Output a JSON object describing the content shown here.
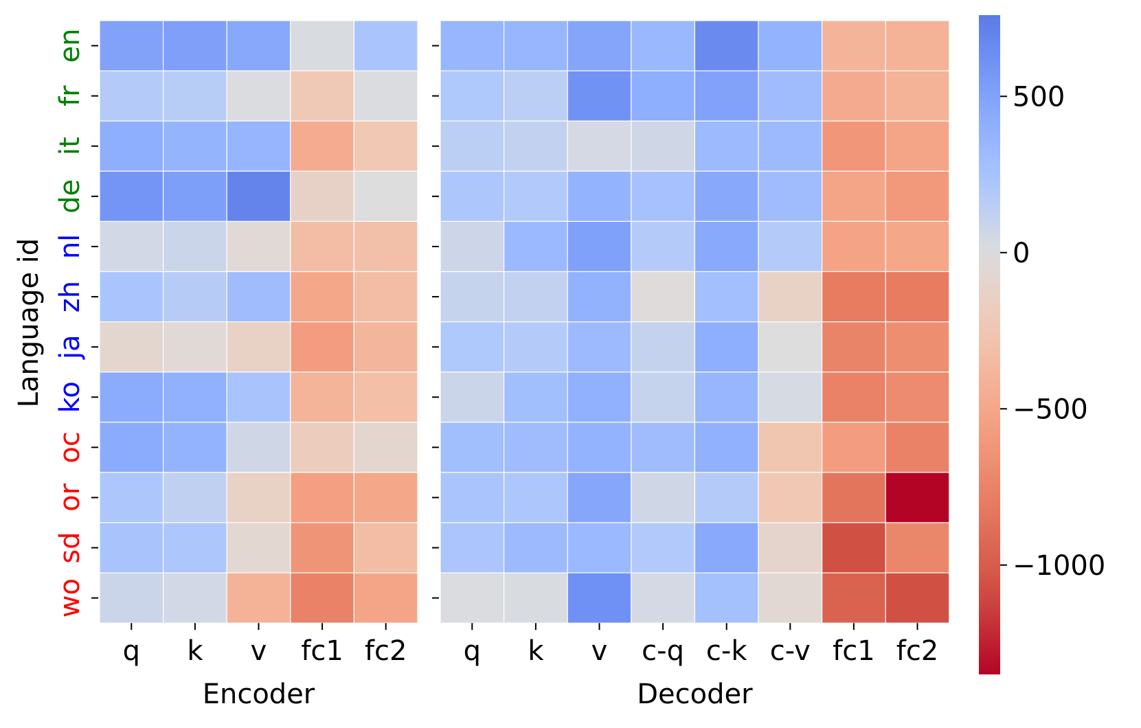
{
  "chart_data": {
    "type": "heatmap",
    "ylabel": "Language id",
    "rows": [
      "en",
      "fr",
      "it",
      "de",
      "nl",
      "zh",
      "ja",
      "ko",
      "oc",
      "or",
      "sd",
      "wo"
    ],
    "row_colors": [
      "#008000",
      "#008000",
      "#008000",
      "#008000",
      "#0000ff",
      "#0000ff",
      "#0000ff",
      "#0000ff",
      "#ff0000",
      "#ff0000",
      "#ff0000",
      "#ff0000"
    ],
    "colormap": "coolwarm",
    "vmin": -1350,
    "vmax": 760,
    "colorbar": {
      "ticks": [
        500,
        0,
        -500,
        -1000
      ],
      "tick_labels": [
        "500",
        "0",
        "−500",
        "−1000"
      ]
    },
    "panels": [
      {
        "xlabel": "Encoder",
        "columns": [
          "q",
          "k",
          "v",
          "fc1",
          "fc2"
        ],
        "values": [
          [
            500,
            520,
            460,
            20,
            230
          ],
          [
            180,
            160,
            10,
            -230,
            10
          ],
          [
            420,
            370,
            360,
            -470,
            -240
          ],
          [
            590,
            530,
            700,
            -130,
            0
          ],
          [
            50,
            80,
            -40,
            -340,
            -310
          ],
          [
            230,
            170,
            300,
            -500,
            -330
          ],
          [
            -80,
            -40,
            -140,
            -580,
            -390
          ],
          [
            440,
            400,
            240,
            -400,
            -320
          ],
          [
            440,
            380,
            60,
            -190,
            -80
          ],
          [
            210,
            130,
            -140,
            -560,
            -500
          ],
          [
            240,
            210,
            -70,
            -640,
            -340
          ],
          [
            80,
            50,
            -420,
            -760,
            -520
          ]
        ]
      },
      {
        "xlabel": "Decoder",
        "columns": [
          "q",
          "k",
          "v",
          "c-q",
          "c-k",
          "c-v",
          "fc1",
          "fc2"
        ],
        "values": [
          [
            350,
            350,
            480,
            340,
            660,
            380,
            -400,
            -420
          ],
          [
            200,
            150,
            610,
            420,
            500,
            300,
            -480,
            -420
          ],
          [
            150,
            120,
            40,
            60,
            320,
            320,
            -620,
            -520
          ],
          [
            210,
            190,
            380,
            260,
            460,
            300,
            -520,
            -600
          ],
          [
            70,
            330,
            510,
            180,
            450,
            180,
            -530,
            -500
          ],
          [
            100,
            120,
            390,
            -20,
            280,
            -140,
            -800,
            -800
          ],
          [
            200,
            180,
            320,
            110,
            420,
            0,
            -750,
            -680
          ],
          [
            80,
            290,
            400,
            100,
            350,
            30,
            -760,
            -700
          ],
          [
            290,
            300,
            380,
            300,
            400,
            -260,
            -580,
            -760
          ],
          [
            230,
            210,
            470,
            60,
            180,
            -240,
            -850,
            -1350
          ],
          [
            220,
            320,
            330,
            190,
            450,
            -100,
            -1080,
            -730
          ],
          [
            10,
            20,
            620,
            40,
            270,
            -60,
            -960,
            -1080
          ]
        ]
      }
    ]
  }
}
